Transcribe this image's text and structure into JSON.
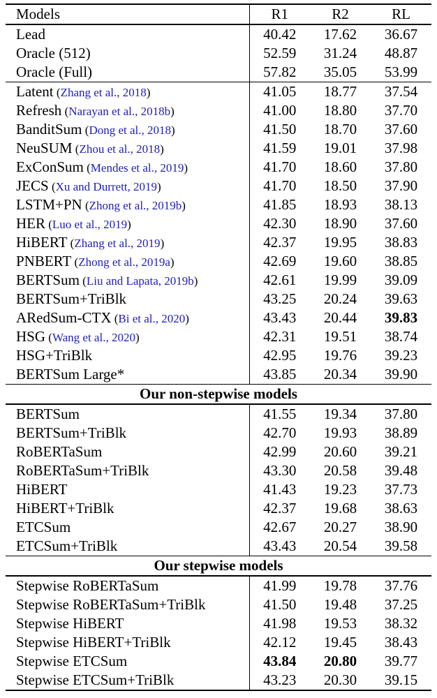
{
  "colors": {
    "text": "#000000",
    "citation_link": "#2121b0",
    "rule": "#000000",
    "background": "#ffffff"
  },
  "table": {
    "header": {
      "models": "Models",
      "r1": "R1",
      "r2": "R2",
      "rl": "RL"
    },
    "groups": [
      {
        "title": null,
        "rows": [
          {
            "model": "Lead",
            "cite": null,
            "r1": "40.42",
            "r2": "17.62",
            "rl": "36.67",
            "bold": []
          },
          {
            "model": "Oracle (512)",
            "cite": null,
            "r1": "52.59",
            "r2": "31.24",
            "rl": "48.87",
            "bold": []
          },
          {
            "model": "Oracle (Full)",
            "cite": null,
            "r1": "57.82",
            "r2": "35.05",
            "rl": "53.99",
            "bold": []
          }
        ]
      },
      {
        "title": null,
        "rows": [
          {
            "model": "Latent",
            "cite": "Zhang et al., 2018",
            "r1": "41.05",
            "r2": "18.77",
            "rl": "37.54",
            "bold": []
          },
          {
            "model": "Refresh",
            "cite": "Narayan et al., 2018b",
            "r1": "41.00",
            "r2": "18.80",
            "rl": "37.70",
            "bold": []
          },
          {
            "model": "BanditSum",
            "cite": "Dong et al., 2018",
            "r1": "41.50",
            "r2": "18.70",
            "rl": "37.60",
            "bold": []
          },
          {
            "model": "NeuSUM",
            "cite": "Zhou et al., 2018",
            "r1": "41.59",
            "r2": "19.01",
            "rl": "37.98",
            "bold": []
          },
          {
            "model": "ExConSum",
            "cite": "Mendes et al., 2019",
            "r1": "41.70",
            "r2": "18.60",
            "rl": "37.80",
            "bold": []
          },
          {
            "model": "JECS",
            "cite": "Xu and Durrett, 2019",
            "r1": "41.70",
            "r2": "18.50",
            "rl": "37.90",
            "bold": []
          },
          {
            "model": "LSTM+PN",
            "cite": "Zhong et al., 2019b",
            "r1": "41.85",
            "r2": "18.93",
            "rl": "38.13",
            "bold": []
          },
          {
            "model": "HER",
            "cite": "Luo et al., 2019",
            "r1": "42.30",
            "r2": "18.90",
            "rl": "37.60",
            "bold": []
          },
          {
            "model": "HiBERT",
            "cite": "Zhang et al., 2019",
            "r1": "42.37",
            "r2": "19.95",
            "rl": "38.83",
            "bold": []
          },
          {
            "model": "PNBERT",
            "cite": "Zhong et al., 2019a",
            "r1": "42.69",
            "r2": "19.60",
            "rl": "38.85",
            "bold": []
          },
          {
            "model": "BERTSum",
            "cite": "Liu and Lapata, 2019b",
            "r1": "42.61",
            "r2": "19.99",
            "rl": "39.09",
            "bold": []
          },
          {
            "model": "BERTSum+TriBlk",
            "cite": null,
            "r1": "43.25",
            "r2": "20.24",
            "rl": "39.63",
            "bold": []
          },
          {
            "model": "ARedSum-CTX",
            "cite": "Bi et al., 2020",
            "r1": "43.43",
            "r2": "20.44",
            "rl": "39.83",
            "bold": [
              "rl"
            ]
          },
          {
            "model": "HSG",
            "cite": "Wang et al., 2020",
            "r1": "42.31",
            "r2": "19.51",
            "rl": "38.74",
            "bold": []
          },
          {
            "model": "HSG+TriBlk",
            "cite": null,
            "r1": "42.95",
            "r2": "19.76",
            "rl": "39.23",
            "bold": []
          },
          {
            "model": "BERTSum Large*",
            "cite": null,
            "r1": "43.85",
            "r2": "20.34",
            "rl": "39.90",
            "bold": []
          }
        ]
      },
      {
        "title": "Our non-stepwise models",
        "rows": [
          {
            "model": "BERTSum",
            "cite": null,
            "r1": "41.55",
            "r2": "19.34",
            "rl": "37.80",
            "bold": []
          },
          {
            "model": "BERTSum+TriBlk",
            "cite": null,
            "r1": "42.70",
            "r2": "19.93",
            "rl": "38.89",
            "bold": []
          },
          {
            "model": "RoBERTaSum",
            "cite": null,
            "r1": "42.99",
            "r2": "20.60",
            "rl": "39.21",
            "bold": []
          },
          {
            "model": "RoBERTaSum+TriBlk",
            "cite": null,
            "r1": "43.30",
            "r2": "20.58",
            "rl": "39.48",
            "bold": []
          },
          {
            "model": "HiBERT",
            "cite": null,
            "r1": "41.43",
            "r2": "19.23",
            "rl": "37.73",
            "bold": []
          },
          {
            "model": "HiBERT+TriBlk",
            "cite": null,
            "r1": "42.37",
            "r2": "19.68",
            "rl": "38.63",
            "bold": []
          },
          {
            "model": "ETCSum",
            "cite": null,
            "r1": "42.67",
            "r2": "20.27",
            "rl": "38.90",
            "bold": []
          },
          {
            "model": "ETCSum+TriBlk",
            "cite": null,
            "r1": "43.43",
            "r2": "20.54",
            "rl": "39.58",
            "bold": []
          }
        ]
      },
      {
        "title": "Our stepwise models",
        "rows": [
          {
            "model": "Stepwise RoBERTaSum",
            "cite": null,
            "r1": "41.99",
            "r2": "19.78",
            "rl": "37.76",
            "bold": []
          },
          {
            "model": "Stepwise RoBERTaSum+TriBlk",
            "cite": null,
            "r1": "41.50",
            "r2": "19.48",
            "rl": "37.25",
            "bold": []
          },
          {
            "model": "Stepwise HiBERT",
            "cite": null,
            "r1": "41.98",
            "r2": "19.53",
            "rl": "38.32",
            "bold": []
          },
          {
            "model": "Stepwise HiBERT+TriBlk",
            "cite": null,
            "r1": "42.12",
            "r2": "19.45",
            "rl": "38.43",
            "bold": []
          },
          {
            "model": "Stepwise ETCSum",
            "cite": null,
            "r1": "43.84",
            "r2": "20.80",
            "rl": "39.77",
            "bold": [
              "r1",
              "r2"
            ]
          },
          {
            "model": "Stepwise ETCSum+TriBlk",
            "cite": null,
            "r1": "43.23",
            "r2": "20.30",
            "rl": "39.15",
            "bold": []
          }
        ]
      }
    ]
  }
}
